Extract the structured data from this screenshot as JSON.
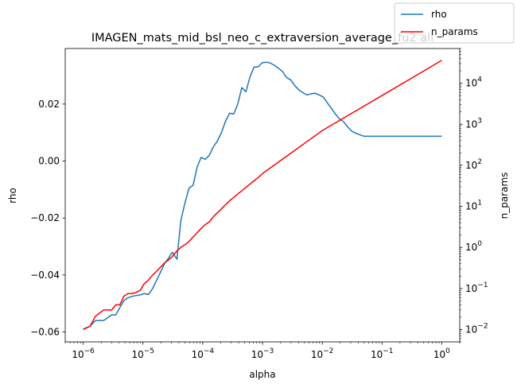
{
  "chart_data": {
    "type": "line",
    "title": "IMAGEN_mats_mid_bsl_neo_c_extraversion_average_fu2 all",
    "xlabel": "alpha",
    "ylabel": "rho",
    "y2label": "n_params",
    "xscale": "log",
    "xlim": [
      5e-07,
      2.0
    ],
    "ylim": [
      -0.0635,
      0.0395
    ],
    "y2scale": "log",
    "y2lim": [
      0.005,
      70000
    ],
    "x_ticks": [
      {
        "value": 1e-06,
        "base": "10",
        "exp": "−6"
      },
      {
        "value": 1e-05,
        "base": "10",
        "exp": "−5"
      },
      {
        "value": 0.0001,
        "base": "10",
        "exp": "−4"
      },
      {
        "value": 0.001,
        "base": "10",
        "exp": "−3"
      },
      {
        "value": 0.01,
        "base": "10",
        "exp": "−2"
      },
      {
        "value": 0.1,
        "base": "10",
        "exp": "−1"
      },
      {
        "value": 1,
        "base": "10",
        "exp": "0"
      }
    ],
    "y_ticks": [
      {
        "value": -0.06,
        "label": "−0.06"
      },
      {
        "value": -0.04,
        "label": "−0.04"
      },
      {
        "value": -0.02,
        "label": "−0.02"
      },
      {
        "value": 0.0,
        "label": "0.00"
      },
      {
        "value": 0.02,
        "label": "0.02"
      }
    ],
    "y2_ticks": [
      {
        "value": 0.01,
        "base": "10",
        "exp": "−2"
      },
      {
        "value": 0.1,
        "base": "10",
        "exp": "−1"
      },
      {
        "value": 1,
        "base": "10",
        "exp": "0"
      },
      {
        "value": 10,
        "base": "10",
        "exp": "1"
      },
      {
        "value": 100,
        "base": "10",
        "exp": "2"
      },
      {
        "value": 1000,
        "base": "10",
        "exp": "3"
      },
      {
        "value": 10000,
        "base": "10",
        "exp": "4"
      }
    ],
    "legend": {
      "position": "top-right",
      "entries": [
        "rho",
        "n_params"
      ]
    },
    "grid": false,
    "series": [
      {
        "name": "rho",
        "axis": "left",
        "color": "#1f77b4",
        "x": [
          1e-06,
          1.1696e-06,
          1.3681e-06,
          1.6002e-06,
          1.8718e-06,
          2.1894e-06,
          2.5609e-06,
          2.9955e-06,
          3.5038e-06,
          4.0984e-06,
          4.7939e-06,
          5.6074e-06,
          6.559e-06,
          7.672e-06,
          8.974e-06,
          1.0497e-05,
          1.2278e-05,
          1.4362e-05,
          1.6799e-05,
          1.9649e-05,
          2.2984e-05,
          2.6884e-05,
          3.1446e-05,
          3.6782e-05,
          4.3024e-05,
          5.0325e-05,
          5.8865e-05,
          6.8854e-05,
          8.0538e-05,
          9.4206e-05,
          0.00011019,
          0.00012889,
          0.00015077,
          0.00017635,
          0.00020628,
          0.00024128,
          0.00028223,
          0.00033012,
          0.00038614,
          0.00045167,
          0.00052832,
          0.00061797,
          0.00072284,
          0.00084551,
          0.00098899,
          0.0011568,
          0.0013531,
          0.0015827,
          0.0018513,
          0.0021655,
          0.002533,
          0.0029628,
          0.0034656,
          0.0040537,
          0.0047416,
          0.0055462,
          0.0064874,
          0.0075883,
          0.008876,
          0.010382,
          0.012144,
          0.014205,
          0.016616,
          0.019435,
          0.022733,
          0.026591,
          0.031103,
          0.036381,
          0.042555,
          0.049777,
          0.058224,
          0.068104,
          0.079661,
          0.093179,
          0.10899,
          0.12749,
          0.14912,
          0.17443,
          0.20403,
          0.23865,
          0.27915,
          0.32652,
          0.38193,
          0.44674,
          0.52255,
          0.61123,
          0.71495,
          0.83628,
          1.0
        ],
        "y": [
          -0.059,
          -0.0589,
          -0.058,
          -0.056,
          -0.056,
          -0.056,
          -0.056,
          -0.0551,
          -0.054,
          -0.054,
          -0.054,
          -0.0515,
          -0.049,
          -0.048,
          -0.0475,
          -0.0475,
          -0.047,
          -0.0465,
          -0.0469,
          -0.046,
          -0.0449,
          -0.042,
          -0.0391,
          -0.036,
          -0.034,
          -0.033,
          -0.032,
          -0.033,
          -0.0345,
          -0.028,
          -0.021,
          -0.018,
          -0.015,
          -0.0125,
          -0.0095,
          -0.0085,
          -0.005,
          -0.002,
          0.0,
          0.0013,
          0.001,
          0.0006,
          0.001,
          0.002,
          0.005,
          0.006,
          0.007,
          0.0085,
          0.01,
          0.012,
          0.014,
          0.0155,
          0.0168,
          0.0166,
          0.0165,
          0.018,
          0.02,
          0.022,
          0.0258,
          0.025,
          0.0243,
          0.027,
          0.0295,
          0.031,
          0.033,
          0.0331,
          0.0329,
          0.0335,
          0.0345,
          0.0347,
          0.0346,
          0.0344,
          0.034,
          0.0336,
          0.0331,
          0.0326,
          0.032,
          0.0314,
          0.0305,
          0.0293,
          0.0285,
          0.028,
          0.0265,
          0.025,
          0.024,
          0.0235,
          0.0232,
          0.0234,
          0.0087
        ],
        "x_dense_note": "",
        "x2": [
          1e-06,
          1.3e-06,
          1.6e-06,
          2.2e-06,
          3e-06,
          3.5e-06,
          4.1e-06,
          4.8e-06,
          5.6e-06,
          6.6e-06,
          9e-06,
          1.05e-05,
          1.23e-05,
          1.44e-05,
          1.68e-05,
          1.96e-05,
          2.3e-05,
          2.7e-05,
          3.1e-05,
          3.7e-05,
          4.3e-05,
          5e-05,
          5.9e-05,
          6.9e-05,
          8.1e-05,
          9.4e-05,
          0.00011,
          0.000129,
          0.000151,
          0.000176,
          0.000206,
          0.000241,
          0.000282,
          0.00033,
          0.000386,
          0.000452,
          0.000528,
          0.000618,
          0.000723,
          0.000846,
          0.00099,
          0.00116,
          0.00135,
          0.00158,
          0.00185,
          0.00217,
          0.00253,
          0.00296,
          0.00347,
          0.00405,
          0.00474,
          0.00555,
          0.00649,
          0.00759,
          0.00888,
          0.0104,
          0.0121,
          0.0142,
          0.0166,
          0.0194,
          0.0227,
          0.0266,
          0.0311,
          0.0364,
          0.0426,
          0.0498,
          0.0582,
          0.0681,
          0.0797,
          0.0932,
          0.109,
          0.127,
          0.149,
          0.174,
          0.204,
          0.239,
          0.279,
          0.327,
          0.382,
          0.447,
          0.523,
          0.611,
          0.715,
          0.836,
          1.0
        ],
        "y2": [
          -0.059,
          -0.058,
          -0.056,
          -0.056,
          -0.054,
          -0.054,
          -0.0515,
          -0.049,
          -0.048,
          -0.0475,
          -0.047,
          -0.0465,
          -0.0469,
          -0.0449,
          -0.042,
          -0.0391,
          -0.036,
          -0.034,
          -0.032,
          -0.0345,
          -0.021,
          -0.015,
          -0.0095,
          -0.0085,
          -0.002,
          0.0013,
          0.0006,
          0.002,
          0.005,
          0.007,
          0.01,
          0.014,
          0.0168,
          0.0165,
          0.02,
          0.0258,
          0.0243,
          0.0295,
          0.033,
          0.033,
          0.0345,
          0.0347,
          0.0344,
          0.0336,
          0.0326,
          0.0314,
          0.0293,
          0.0285,
          0.0265,
          0.025,
          0.024,
          0.0232,
          0.0236,
          0.0238,
          0.0232,
          0.0225,
          0.0205,
          0.0185,
          0.0165,
          0.0148,
          0.0138,
          0.012,
          0.0105,
          0.0098,
          0.0092,
          0.0087,
          0.0087,
          0.0087,
          0.0087,
          0.0087,
          0.0087,
          0.0087,
          0.0087,
          0.0087,
          0.0087,
          0.0087,
          0.0087,
          0.0087,
          0.0087,
          0.0087,
          0.0087,
          0.0087,
          0.0087,
          0.0087,
          0.0087
        ]
      },
      {
        "name": "n_params",
        "axis": "right",
        "color": "#ff0000",
        "x": [
          1e-06,
          1.3e-06,
          1.6e-06,
          2.2e-06,
          2.6e-06,
          3e-06,
          3.5e-06,
          4.1e-06,
          4.8e-06,
          5.6e-06,
          6.6e-06,
          7.7e-06,
          9e-06,
          1.05e-05,
          1.23e-05,
          1.44e-05,
          1.68e-05,
          1.96e-05,
          2.3e-05,
          2.7e-05,
          3.1e-05,
          3.7e-05,
          4.3e-05,
          5e-05,
          5.9e-05,
          6.9e-05,
          8.1e-05,
          9.4e-05,
          0.00011,
          0.000129,
          0.000151,
          0.000176,
          0.000206,
          0.000241,
          0.000282,
          0.00033,
          0.000386,
          0.000452,
          0.000528,
          0.000618,
          0.000723,
          0.000846,
          0.001,
          0.01,
          0.1,
          1.0
        ],
        "y": [
          0.01,
          0.012,
          0.021,
          0.03,
          0.03,
          0.03,
          0.04,
          0.04,
          0.065,
          0.075,
          0.075,
          0.08,
          0.09,
          0.13,
          0.16,
          0.21,
          0.26,
          0.33,
          0.42,
          0.5,
          0.6,
          0.82,
          1.0,
          1.16,
          1.39,
          1.8,
          2.3,
          2.9,
          3.6,
          4.2,
          5.6,
          7.0,
          8.7,
          11.0,
          13.7,
          16.5,
          20.0,
          24.0,
          29.0,
          35.0,
          42.0,
          50.0,
          63.0,
          700.0,
          5000.0,
          36000.0
        ]
      }
    ]
  }
}
